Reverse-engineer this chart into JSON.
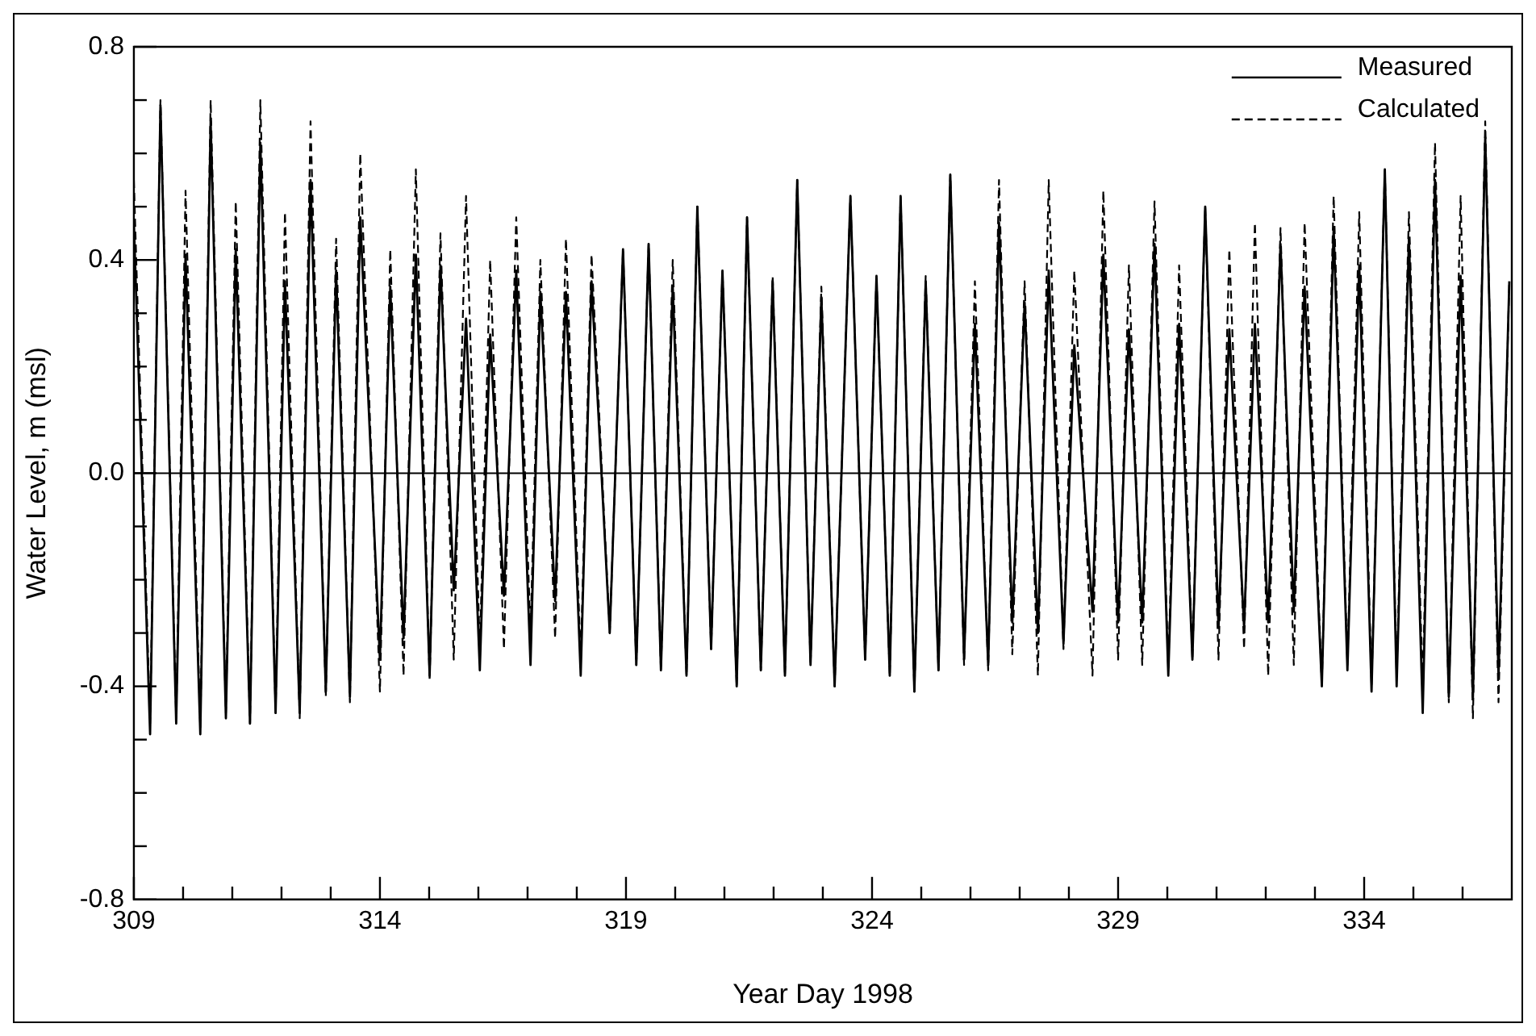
{
  "chart_data": {
    "type": "line",
    "xlabel": "Year Day 1998",
    "ylabel": "Water Level, m (msl)",
    "xlim": [
      309,
      337
    ],
    "xticks": [
      {
        "value": 309,
        "label": "309"
      },
      {
        "value": 310,
        "label": null
      },
      {
        "value": 311,
        "label": null
      },
      {
        "value": 312,
        "label": null
      },
      {
        "value": 313,
        "label": null
      },
      {
        "value": 314,
        "label": "314"
      },
      {
        "value": 315,
        "label": null
      },
      {
        "value": 316,
        "label": null
      },
      {
        "value": 317,
        "label": null
      },
      {
        "value": 318,
        "label": null
      },
      {
        "value": 319,
        "label": "319"
      },
      {
        "value": 320,
        "label": null
      },
      {
        "value": 321,
        "label": null
      },
      {
        "value": 322,
        "label": null
      },
      {
        "value": 323,
        "label": null
      },
      {
        "value": 324,
        "label": "324"
      },
      {
        "value": 325,
        "label": null
      },
      {
        "value": 326,
        "label": null
      },
      {
        "value": 327,
        "label": null
      },
      {
        "value": 328,
        "label": null
      },
      {
        "value": 329,
        "label": "329"
      },
      {
        "value": 330,
        "label": null
      },
      {
        "value": 331,
        "label": null
      },
      {
        "value": 332,
        "label": null
      },
      {
        "value": 333,
        "label": null
      },
      {
        "value": 334,
        "label": "334"
      },
      {
        "value": 335,
        "label": null
      },
      {
        "value": 336,
        "label": null
      }
    ],
    "ylim": [
      -0.8,
      0.8
    ],
    "yticks": [
      -0.8,
      {
        "value": -0.7,
        "label": null
      },
      {
        "value": -0.6,
        "label": null
      },
      {
        "value": -0.5,
        "label": null
      },
      -0.4,
      {
        "value": -0.3,
        "label": null
      },
      {
        "value": -0.2,
        "label": null
      },
      {
        "value": -0.1,
        "label": null
      },
      {
        "value": 0,
        "label": "0.0"
      },
      {
        "value": 0.1,
        "label": null
      },
      {
        "value": 0.2,
        "label": null
      },
      {
        "value": 0.3,
        "label": null
      },
      0.4,
      {
        "value": 0.5,
        "label": null
      },
      {
        "value": 0.6,
        "label": null
      },
      {
        "value": 0.7,
        "label": null
      },
      0.8
    ],
    "grid": false,
    "legend": "top right",
    "marker": "none",
    "ref_lines": [
      {
        "axis": "y",
        "value": 0,
        "color": "#000000",
        "line_style": "solid"
      }
    ],
    "x": [
      309.0,
      309.33,
      309.54,
      309.86,
      310.05,
      310.35,
      310.56,
      310.87,
      311.07,
      311.36,
      311.57,
      311.88,
      312.07,
      312.37,
      312.59,
      312.9,
      313.11,
      313.39,
      313.6,
      314.0,
      314.21,
      314.48,
      314.73,
      315.01,
      315.23,
      315.5,
      315.75,
      316.03,
      316.24,
      316.52,
      316.77,
      317.06,
      317.26,
      317.56,
      317.78,
      318.08,
      318.3,
      318.67,
      318.94,
      319.21,
      319.46,
      319.71,
      319.95,
      320.23,
      320.45,
      320.73,
      320.96,
      321.25,
      321.46,
      321.74,
      321.98,
      322.23,
      322.48,
      322.75,
      322.97,
      323.24,
      323.56,
      323.86,
      324.09,
      324.36,
      324.58,
      324.86,
      325.09,
      325.35,
      325.59,
      325.87,
      326.09,
      326.36,
      326.58,
      326.85,
      327.1,
      327.37,
      327.59,
      327.89,
      328.11,
      328.48,
      328.7,
      329.0,
      329.22,
      329.49,
      329.74,
      330.02,
      330.24,
      330.51,
      330.77,
      331.04,
      331.26,
      331.56,
      331.78,
      332.05,
      332.3,
      332.57,
      332.79,
      333.14,
      333.38,
      333.66,
      333.9,
      334.15,
      334.42,
      334.66,
      334.91,
      335.19,
      335.44,
      335.72,
      335.96,
      336.21,
      336.46,
      336.73,
      336.95
    ],
    "series": [
      {
        "name": "Measured",
        "color": "#000000",
        "line_style": "solid",
        "values": [
          0.47,
          -0.49,
          0.69,
          -0.47,
          0.41,
          -0.49,
          0.66,
          -0.46,
          0.42,
          -0.47,
          0.62,
          -0.45,
          0.36,
          -0.45,
          0.55,
          -0.41,
          0.38,
          -0.42,
          0.48,
          -0.35,
          0.35,
          -0.31,
          0.41,
          -0.38,
          0.39,
          -0.22,
          0.29,
          -0.37,
          0.26,
          -0.23,
          0.38,
          -0.36,
          0.34,
          -0.24,
          0.34,
          -0.38,
          0.36,
          -0.3,
          0.42,
          -0.36,
          0.43,
          -0.37,
          0.35,
          -0.38,
          0.5,
          -0.33,
          0.38,
          -0.4,
          0.48,
          -0.37,
          0.36,
          -0.38,
          0.55,
          -0.36,
          0.33,
          -0.4,
          0.52,
          -0.35,
          0.37,
          -0.38,
          0.52,
          -0.41,
          0.36,
          -0.37,
          0.56,
          -0.35,
          0.28,
          -0.36,
          0.47,
          -0.28,
          0.32,
          -0.3,
          0.38,
          -0.32,
          0.24,
          -0.26,
          0.41,
          -0.28,
          0.27,
          -0.28,
          0.43,
          -0.38,
          0.28,
          -0.35,
          0.5,
          -0.29,
          0.27,
          -0.29,
          0.28,
          -0.28,
          0.43,
          -0.26,
          0.35,
          -0.4,
          0.46,
          -0.37,
          0.39,
          -0.41,
          0.57,
          -0.4,
          0.44,
          -0.45,
          0.55,
          -0.42,
          0.37,
          -0.42,
          0.63,
          -0.38,
          0.36
        ]
      },
      {
        "name": "Calculated",
        "color": "#000000",
        "line_style": "dashed",
        "values": [
          0.55,
          -0.47,
          0.7,
          -0.46,
          0.53,
          -0.48,
          0.7,
          -0.45,
          0.51,
          -0.47,
          0.7,
          -0.45,
          0.49,
          -0.46,
          0.66,
          -0.42,
          0.44,
          -0.43,
          0.6,
          -0.41,
          0.42,
          -0.38,
          0.57,
          -0.39,
          0.45,
          -0.35,
          0.52,
          -0.33,
          0.4,
          -0.33,
          0.48,
          -0.3,
          0.4,
          -0.31,
          0.44,
          -0.35,
          0.41,
          -0.3,
          0.42,
          -0.36,
          0.43,
          -0.37,
          0.4,
          -0.38,
          0.5,
          -0.33,
          0.38,
          -0.4,
          0.48,
          -0.37,
          0.37,
          -0.38,
          0.55,
          -0.36,
          0.35,
          -0.4,
          0.52,
          -0.35,
          0.37,
          -0.38,
          0.52,
          -0.41,
          0.37,
          -0.37,
          0.56,
          -0.36,
          0.36,
          -0.37,
          0.55,
          -0.34,
          0.36,
          -0.38,
          0.55,
          -0.33,
          0.38,
          -0.38,
          0.53,
          -0.35,
          0.39,
          -0.36,
          0.51,
          -0.37,
          0.39,
          -0.35,
          0.5,
          -0.35,
          0.42,
          -0.33,
          0.47,
          -0.38,
          0.46,
          -0.36,
          0.47,
          -0.4,
          0.52,
          -0.36,
          0.49,
          -0.4,
          0.57,
          -0.38,
          0.49,
          -0.4,
          0.62,
          -0.43,
          0.52,
          -0.46,
          0.66,
          -0.43,
          0.36
        ]
      }
    ]
  }
}
